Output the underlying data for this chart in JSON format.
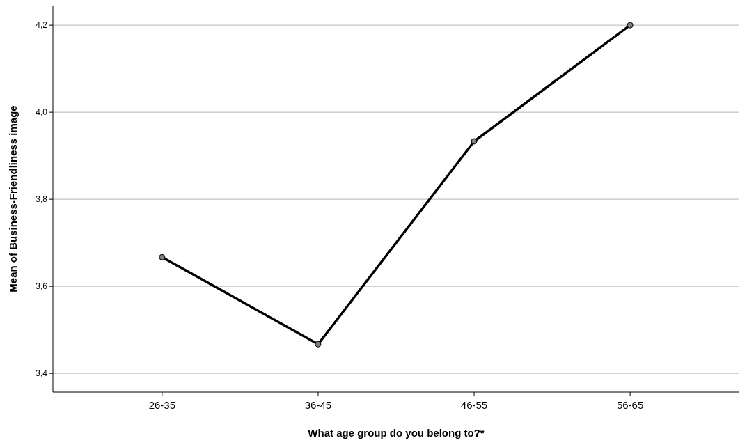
{
  "chart_data": {
    "type": "line",
    "xlabel": "What age group do you belong to?*",
    "ylabel": "Mean of Business-Friendliness image",
    "categories": [
      "26-35",
      "36-45",
      "46-55",
      "56-65"
    ],
    "series": [
      {
        "color": "#000000",
        "values": [
          3.667,
          3.467,
          3.933,
          4.2
        ]
      }
    ],
    "ylim": [
      3.357,
      4.245
    ],
    "yticks": [
      {
        "value": 3.4,
        "label": "3,4"
      },
      {
        "value": 3.6,
        "label": "3,6"
      },
      {
        "value": 3.8,
        "label": "3,8"
      },
      {
        "value": 4.0,
        "label": "4,0"
      },
      {
        "value": 4.2,
        "label": "4,2"
      }
    ],
    "grid": "y",
    "marker": "circle",
    "line_style": "solid"
  }
}
